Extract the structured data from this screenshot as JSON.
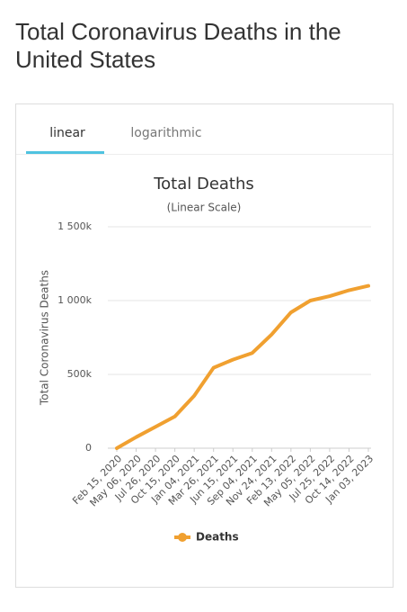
{
  "header": {
    "title": "Total Coronavirus Deaths in the United States"
  },
  "tabs": [
    "linear",
    "logarithmic"
  ],
  "chart_data": {
    "type": "line",
    "title": "Total Deaths",
    "subtitle": "(Linear Scale)",
    "y_label": "Total Coronavirus Deaths",
    "categories": [
      "Feb 15, 2020",
      "May 06, 2020",
      "Jul 26, 2020",
      "Oct 15, 2020",
      "Jan 04, 2021",
      "Mar 26, 2021",
      "Jun 15, 2021",
      "Sep 04, 2021",
      "Nov 24, 2021",
      "Feb 13, 2022",
      "May 05, 2022",
      "Jul 25, 2022",
      "Oct 14, 2022",
      "Jan 03, 2023"
    ],
    "series": [
      {
        "name": "Deaths",
        "color": "#f0a030",
        "values": [
          0,
          75000,
          145000,
          215000,
          355000,
          545000,
          600000,
          645000,
          770000,
          920000,
          1000000,
          1030000,
          1070000,
          1100000
        ]
      }
    ],
    "ylim": [
      0,
      1500000
    ],
    "yticks": [
      0,
      {
        "value": 500000,
        "label": "500k"
      },
      {
        "value": 1000000,
        "label": "1 000k"
      },
      {
        "value": 1500000,
        "label": "1 500k"
      }
    ],
    "grid": true,
    "legend": "bottom"
  }
}
